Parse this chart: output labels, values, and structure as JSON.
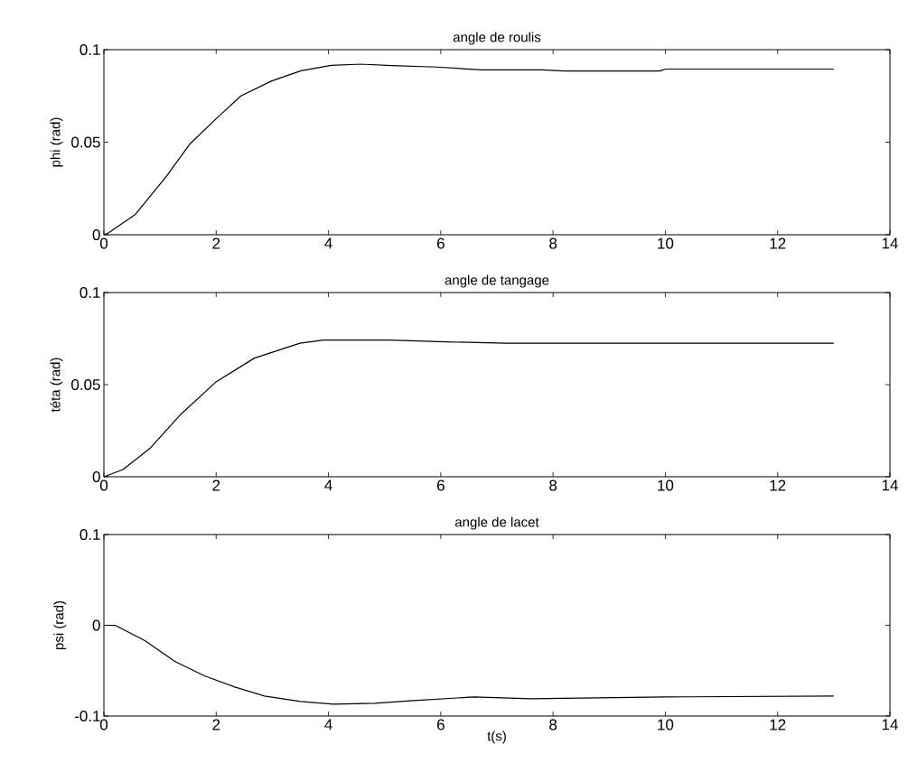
{
  "chart_data": [
    {
      "type": "line",
      "title": "angle de roulis",
      "ylabel": "phi (rad)",
      "xlim": [
        0,
        14
      ],
      "xticks": [
        0,
        2,
        4,
        6,
        8,
        10,
        12,
        14
      ],
      "ylim": [
        0,
        0.1
      ],
      "yticks": [
        0,
        0.05,
        0.1
      ],
      "series": [
        {
          "color": "#000000",
          "x": [
            0,
            0.08,
            0.56,
            1.1,
            1.53,
            2.01,
            2.44,
            2.98,
            3.51,
            4.05,
            4.58,
            5.12,
            5.93,
            6.73,
            7.8,
            8.2,
            9.9,
            10.0,
            13
          ],
          "values": [
            0,
            0.001,
            0.011,
            0.031,
            0.049,
            0.063,
            0.075,
            0.083,
            0.0886,
            0.0915,
            0.0922,
            0.0914,
            0.0906,
            0.0891,
            0.0891,
            0.0885,
            0.0885,
            0.0895,
            0.0895
          ]
        }
      ]
    },
    {
      "type": "line",
      "title": "angle de tangage",
      "ylabel": "téta (rad)",
      "xlim": [
        0,
        14
      ],
      "xticks": [
        0,
        2,
        4,
        6,
        8,
        10,
        12,
        14
      ],
      "ylim": [
        0,
        0.1
      ],
      "yticks": [
        0,
        0.05,
        0.1
      ],
      "series": [
        {
          "color": "#000000",
          "x": [
            0,
            0.34,
            0.82,
            1.35,
            1.99,
            2.68,
            3.49,
            3.91,
            5.09,
            6.1,
            7.17,
            9.0,
            13
          ],
          "values": [
            0,
            0.0039,
            0.0154,
            0.0333,
            0.0513,
            0.0644,
            0.0725,
            0.0742,
            0.0742,
            0.0732,
            0.0725,
            0.0725,
            0.0725
          ]
        }
      ]
    },
    {
      "type": "line",
      "title": "angle de lacet",
      "ylabel": "psi (rad)",
      "xlabel": "t(s)",
      "xlim": [
        0,
        14
      ],
      "xticks": [
        0,
        2,
        4,
        6,
        8,
        10,
        12,
        14
      ],
      "ylim": [
        -0.1,
        0.1
      ],
      "yticks": [
        -0.1,
        0,
        0.1
      ],
      "series": [
        {
          "color": "#000000",
          "x": [
            0,
            0.2,
            0.73,
            1.27,
            1.8,
            2.33,
            2.86,
            3.5,
            4.09,
            4.83,
            5.52,
            6.59,
            7.6,
            10,
            13
          ],
          "values": [
            0,
            0,
            -0.017,
            -0.04,
            -0.056,
            -0.068,
            -0.078,
            -0.084,
            -0.087,
            -0.086,
            -0.083,
            -0.079,
            -0.081,
            -0.079,
            -0.078
          ]
        }
      ]
    }
  ]
}
